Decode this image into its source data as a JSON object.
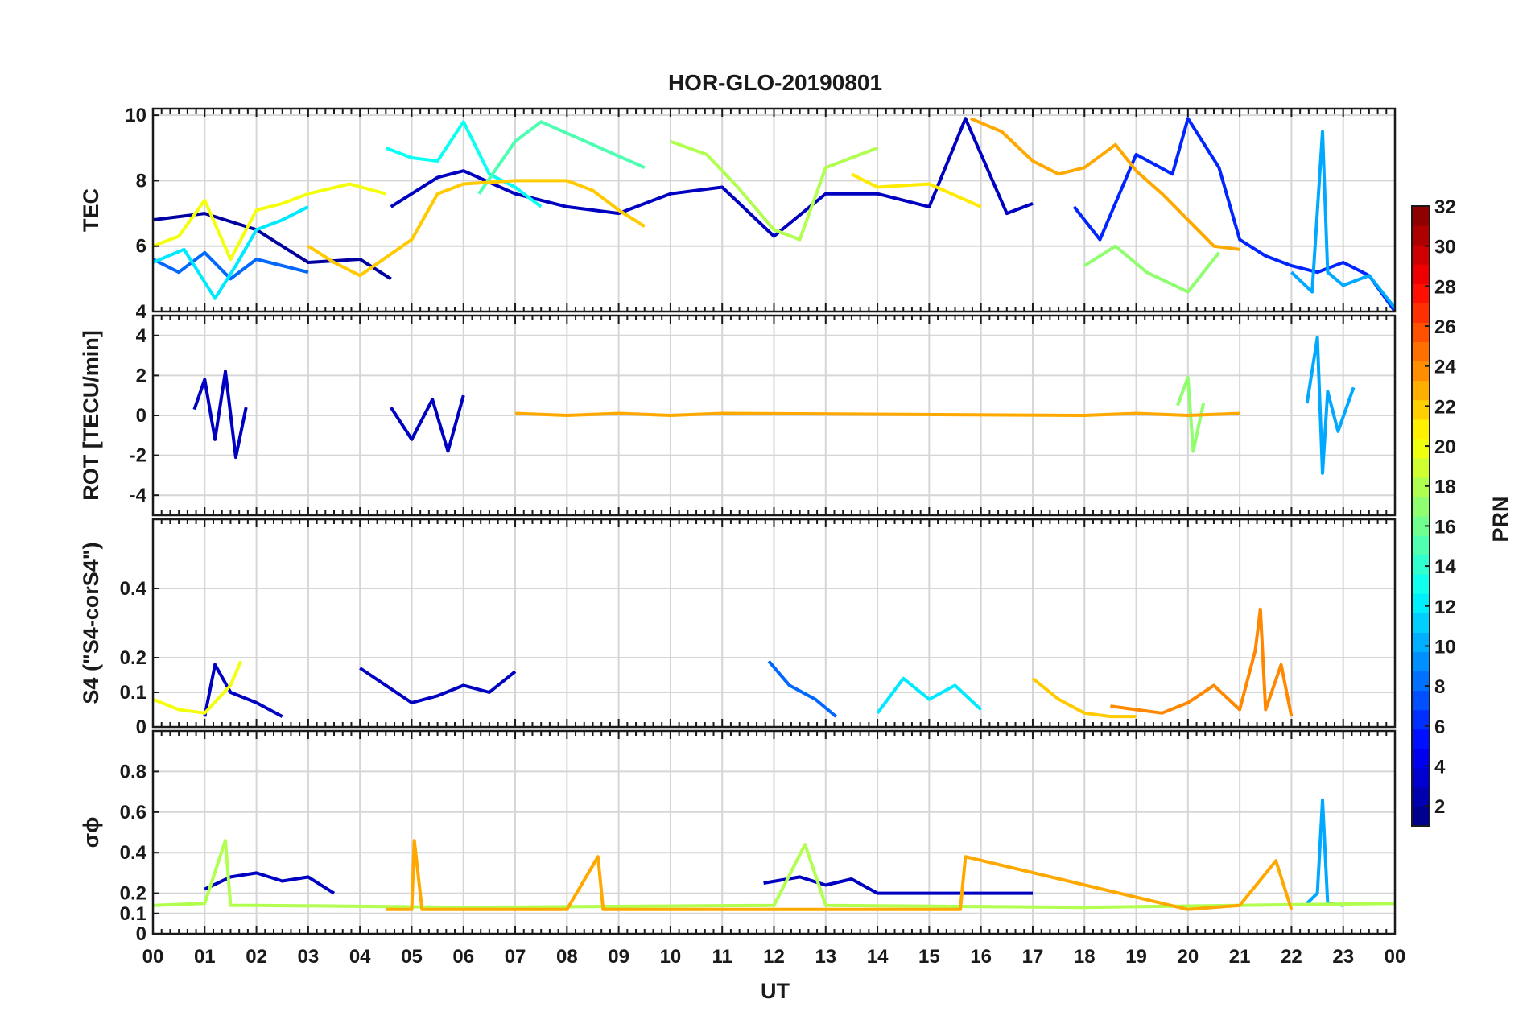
{
  "chart_data": {
    "type": "line",
    "title": "HOR-GLO-20190801",
    "xlabel": "UT",
    "x_ticks": [
      "00",
      "01",
      "02",
      "03",
      "04",
      "05",
      "06",
      "07",
      "08",
      "09",
      "10",
      "11",
      "12",
      "13",
      "14",
      "15",
      "16",
      "17",
      "18",
      "19",
      "20",
      "21",
      "22",
      "23",
      "00"
    ],
    "xlim": [
      0,
      24
    ],
    "grid": true,
    "colormap": "jet",
    "colorbar": {
      "label": "PRN",
      "range": [
        1,
        32
      ],
      "ticks": [
        "2",
        "4",
        "6",
        "8",
        "10",
        "12",
        "14",
        "16",
        "18",
        "20",
        "22",
        "24",
        "26",
        "28",
        "30",
        "32"
      ],
      "levels": 32
    },
    "panels": [
      {
        "ylabel": "TEC",
        "ylim": [
          4,
          10.2
        ],
        "y_ticks": [
          "4",
          "6",
          "8",
          "10"
        ],
        "series": [
          {
            "prn": 2,
            "x": [
              0,
              1,
              2,
              3,
              4,
              4.6
            ],
            "y": [
              6.8,
              7.0,
              6.5,
              5.5,
              5.6,
              5.0
            ]
          },
          {
            "prn": 3,
            "x": [
              4.6,
              5.5,
              6.0,
              7.0,
              8.0,
              9.0,
              10.0,
              11.0,
              12.0,
              13.0,
              14.0,
              15.0,
              15.7,
              16.5,
              17.0
            ],
            "y": [
              7.2,
              8.1,
              8.3,
              7.6,
              7.2,
              7.0,
              7.6,
              7.8,
              6.3,
              7.6,
              7.6,
              7.2,
              9.9,
              7.0,
              7.3
            ]
          },
          {
            "prn": 6,
            "x": [
              17.8,
              18.3,
              19.0,
              19.7,
              20.0,
              20.6,
              21.0,
              21.5,
              22.0,
              22.5,
              23.0,
              23.5,
              24.0
            ],
            "y": [
              7.2,
              6.2,
              8.8,
              8.2,
              9.9,
              8.4,
              6.2,
              5.7,
              5.4,
              5.2,
              5.5,
              5.1,
              4.0
            ]
          },
          {
            "prn": 8,
            "x": [
              0,
              0.5,
              1.0,
              1.5,
              2.0,
              3.0
            ],
            "y": [
              5.6,
              5.2,
              5.8,
              5.0,
              5.6,
              5.2
            ]
          },
          {
            "prn": 10,
            "x": [
              22.0,
              22.4,
              22.6,
              22.7,
              23.0,
              23.5,
              24.0
            ],
            "y": [
              5.2,
              4.6,
              9.5,
              5.2,
              4.8,
              5.1,
              4.1
            ]
          },
          {
            "prn": 12,
            "x": [
              0,
              0.6,
              1.2,
              1.6,
              2.0,
              2.5,
              3.0
            ],
            "y": [
              5.5,
              5.9,
              4.4,
              5.4,
              6.5,
              6.8,
              7.2
            ]
          },
          {
            "prn": 13,
            "x": [
              4.5,
              5.0,
              5.5,
              6.0,
              6.5,
              7.0,
              7.5
            ],
            "y": [
              9.0,
              8.7,
              8.6,
              9.8,
              8.2,
              7.8,
              7.2
            ]
          },
          {
            "prn": 15,
            "x": [
              6.3,
              7.0,
              7.5,
              8.5,
              9.5
            ],
            "y": [
              7.6,
              9.2,
              9.8,
              9.1,
              8.4
            ]
          },
          {
            "prn": 17,
            "x": [
              18.0,
              18.6,
              19.2,
              20.0,
              20.6
            ],
            "y": [
              5.4,
              6.0,
              5.2,
              4.6,
              5.8
            ]
          },
          {
            "prn": 18,
            "x": [
              10.0,
              10.7,
              11.3,
              12.0,
              12.5,
              13.0,
              14.0
            ],
            "y": [
              9.2,
              8.8,
              7.8,
              6.5,
              6.2,
              8.4,
              9.0
            ]
          },
          {
            "prn": 20,
            "x": [
              0,
              0.5,
              1.0,
              1.5,
              2.0,
              2.5,
              3.0,
              3.8,
              4.5
            ],
            "y": [
              6.0,
              6.3,
              7.4,
              5.6,
              7.1,
              7.3,
              7.6,
              7.9,
              7.6
            ]
          },
          {
            "prn": 21,
            "x": [
              13.5,
              14.0,
              15.0,
              16.0
            ],
            "y": [
              8.2,
              7.8,
              7.9,
              7.2
            ]
          },
          {
            "prn": 22,
            "x": [
              3.0,
              3.5,
              4.0,
              5.0,
              5.5,
              6.0,
              7.0,
              8.0,
              8.5,
              9.0,
              9.5
            ],
            "y": [
              6.0,
              5.5,
              5.1,
              6.2,
              7.6,
              7.9,
              8.0,
              8.0,
              7.7,
              7.1,
              6.6
            ]
          },
          {
            "prn": 23,
            "x": [
              15.8,
              16.4,
              17.0,
              17.5,
              18.0,
              18.6,
              19.0,
              19.5,
              20.0,
              20.5,
              21.0
            ],
            "y": [
              9.9,
              9.5,
              8.6,
              8.2,
              8.4,
              9.1,
              8.3,
              7.6,
              6.8,
              6.0,
              5.9
            ]
          }
        ]
      },
      {
        "ylabel": "ROT [TECU/min]",
        "ylim": [
          -5,
          5
        ],
        "y_ticks": [
          "-4",
          "-2",
          "0",
          "2",
          "4"
        ],
        "series": [
          {
            "prn": 3,
            "x": [
              0.8,
              1.0,
              1.2,
              1.4,
              1.6,
              1.8
            ],
            "y": [
              0.3,
              1.8,
              -1.2,
              2.2,
              -2.1,
              0.4
            ]
          },
          {
            "prn": 3,
            "x": [
              4.6,
              5.0,
              5.4,
              5.7,
              6.0
            ],
            "y": [
              0.4,
              -1.2,
              0.8,
              -1.8,
              1.0
            ]
          },
          {
            "prn": 10,
            "x": [
              22.3,
              22.5,
              22.6,
              22.7,
              22.9,
              23.2
            ],
            "y": [
              0.6,
              3.9,
              -2.9,
              1.2,
              -0.8,
              1.4
            ]
          },
          {
            "prn": 17,
            "x": [
              19.8,
              20.0,
              20.1,
              20.3
            ],
            "y": [
              0.5,
              1.9,
              -1.8,
              0.6
            ]
          },
          {
            "prn": 23,
            "x": [
              7.0,
              8.0,
              9.0,
              10.0,
              11.0,
              18.0,
              19.0,
              20.0,
              21.0
            ],
            "y": [
              0.1,
              0.0,
              0.1,
              0.0,
              0.1,
              0.0,
              0.1,
              0.0,
              0.1
            ]
          }
        ]
      },
      {
        "ylabel": "S4 (\"S4-corS4\")",
        "ylim": [
          0,
          0.6
        ],
        "y_ticks": [
          "0",
          "0.1",
          "0.2",
          "0.4"
        ],
        "series": [
          {
            "prn": 3,
            "x": [
              1.0,
              1.2,
              1.5,
              2.0,
              2.5
            ],
            "y": [
              0.03,
              0.18,
              0.1,
              0.07,
              0.03
            ]
          },
          {
            "prn": 3,
            "x": [
              4.0,
              4.5,
              5.0,
              5.5,
              6.0,
              6.5,
              7.0
            ],
            "y": [
              0.17,
              0.12,
              0.07,
              0.09,
              0.12,
              0.1,
              0.16
            ]
          },
          {
            "prn": 8,
            "x": [
              11.9,
              12.3,
              12.8,
              13.2
            ],
            "y": [
              0.19,
              0.12,
              0.08,
              0.03
            ]
          },
          {
            "prn": 12,
            "x": [
              14.0,
              14.5,
              15.0,
              15.5,
              16.0
            ],
            "y": [
              0.04,
              0.14,
              0.08,
              0.12,
              0.05
            ]
          },
          {
            "prn": 20,
            "x": [
              0,
              0.5,
              1.0,
              1.5,
              1.7
            ],
            "y": [
              0.08,
              0.05,
              0.04,
              0.12,
              0.19
            ]
          },
          {
            "prn": 22,
            "x": [
              17.0,
              17.5,
              18.0,
              18.5,
              19.0
            ],
            "y": [
              0.14,
              0.08,
              0.04,
              0.03,
              0.03
            ]
          },
          {
            "prn": 24,
            "x": [
              18.5,
              19.5,
              20.0,
              20.5,
              21.0,
              21.3,
              21.4,
              21.5,
              21.8,
              22.0
            ],
            "y": [
              0.06,
              0.04,
              0.07,
              0.12,
              0.05,
              0.22,
              0.34,
              0.05,
              0.18,
              0.03
            ]
          }
        ]
      },
      {
        "ylabel": "σϕ",
        "ylim": [
          0,
          1
        ],
        "y_ticks": [
          "0",
          "0.1",
          "0.2",
          "0.4",
          "0.6",
          "0.8"
        ],
        "series": [
          {
            "prn": 3,
            "x": [
              1.0,
              1.5,
              2.0,
              2.5,
              3.0,
              3.5
            ],
            "y": [
              0.22,
              0.28,
              0.3,
              0.26,
              0.28,
              0.2
            ]
          },
          {
            "prn": 3,
            "x": [
              11.8,
              12.5,
              13.0,
              13.5,
              14.0,
              16.0,
              17.0
            ],
            "y": [
              0.25,
              0.28,
              0.24,
              0.27,
              0.2,
              0.2,
              0.2
            ]
          },
          {
            "prn": 10,
            "x": [
              22.3,
              22.5,
              22.6,
              22.7,
              23.0
            ],
            "y": [
              0.15,
              0.2,
              0.66,
              0.15,
              0.14
            ]
          },
          {
            "prn": 18,
            "x": [
              0,
              1.0,
              1.4,
              1.5,
              2.0,
              6.0,
              12.0,
              12.6,
              13.0,
              18.0,
              24.0
            ],
            "y": [
              0.14,
              0.15,
              0.46,
              0.14,
              0.14,
              0.13,
              0.14,
              0.44,
              0.14,
              0.13,
              0.15
            ]
          },
          {
            "prn": 23,
            "x": [
              4.5,
              5.0,
              5.05,
              5.2,
              8.0,
              8.6,
              8.7,
              15.6,
              15.7,
              20.0,
              21.0,
              21.7,
              22.0
            ],
            "y": [
              0.12,
              0.12,
              0.46,
              0.12,
              0.12,
              0.38,
              0.12,
              0.12,
              0.38,
              0.12,
              0.14,
              0.36,
              0.12
            ]
          }
        ]
      }
    ]
  }
}
